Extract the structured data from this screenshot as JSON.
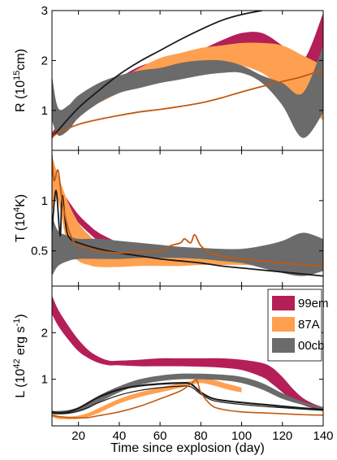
{
  "chart_data": [
    {
      "type": "area",
      "panel": "top",
      "ylabel": "R (10^15cm)",
      "ylabel_parts": {
        "prefix": "R (10",
        "exp": "15",
        "suffix": "cm)"
      },
      "xlim": [
        7,
        140
      ],
      "ylim": [
        0.2,
        3.0
      ],
      "yticks": [
        1,
        2,
        3
      ],
      "bands": [
        {
          "name": "99em",
          "color": "#b51f57",
          "x": [
            7,
            10,
            20,
            30,
            40,
            50,
            60,
            70,
            80,
            90,
            100,
            110,
            120,
            130,
            140
          ],
          "lower": [
            0.45,
            0.58,
            0.9,
            1.2,
            1.45,
            1.7,
            1.85,
            1.95,
            2.05,
            2.1,
            2.15,
            2.05,
            1.85,
            1.55,
            1.0
          ],
          "upper": [
            0.55,
            0.7,
            1.05,
            1.35,
            1.65,
            1.88,
            2.0,
            2.1,
            2.22,
            2.4,
            2.55,
            2.55,
            2.3,
            2.0,
            2.95
          ]
        },
        {
          "name": "87A",
          "color": "#ffa050",
          "x": [
            15,
            20,
            30,
            40,
            50,
            60,
            70,
            80,
            90,
            100,
            110,
            120,
            130,
            140
          ],
          "lower": [
            0.85,
            0.95,
            1.15,
            1.35,
            1.55,
            1.75,
            1.85,
            1.95,
            1.95,
            1.9,
            1.75,
            1.45,
            1.15,
            0.8
          ],
          "upper": [
            0.95,
            1.05,
            1.3,
            1.6,
            1.85,
            2.05,
            2.15,
            2.25,
            2.3,
            2.35,
            2.35,
            2.3,
            2.1,
            1.9
          ]
        },
        {
          "name": "00cb",
          "color": "#6b6b6b",
          "x": [
            7,
            10,
            15,
            20,
            30,
            40,
            50,
            60,
            70,
            80,
            90,
            100,
            110,
            120,
            130,
            140
          ],
          "lower": [
            0.8,
            0.5,
            0.6,
            0.85,
            1.15,
            1.35,
            1.45,
            1.55,
            1.62,
            1.7,
            1.75,
            1.75,
            1.55,
            1.1,
            0.45,
            0.95
          ],
          "upper": [
            1.7,
            1.05,
            1.1,
            1.3,
            1.55,
            1.7,
            1.8,
            1.85,
            1.95,
            2.0,
            2.0,
            1.9,
            1.7,
            1.55,
            1.35,
            2.3
          ]
        }
      ],
      "lines": [
        {
          "color": "#1a1a1a",
          "x": [
            7,
            10,
            20,
            30,
            40,
            50,
            60,
            70,
            80,
            90,
            100,
            110
          ],
          "y": [
            0.45,
            0.6,
            1.05,
            1.4,
            1.72,
            1.98,
            2.2,
            2.42,
            2.62,
            2.8,
            2.92,
            3.0
          ]
        },
        {
          "color": "#c05a10",
          "x": [
            7,
            10,
            20,
            30,
            40,
            50,
            60,
            70,
            80,
            90,
            100,
            110,
            120,
            130,
            140
          ],
          "y": [
            0.45,
            0.55,
            0.72,
            0.82,
            0.9,
            0.97,
            1.02,
            1.08,
            1.15,
            1.25,
            1.37,
            1.48,
            1.58,
            1.68,
            1.82
          ]
        }
      ]
    },
    {
      "type": "area",
      "panel": "middle",
      "ylabel": "T (10^4K)",
      "ylabel_parts": {
        "prefix": "T (10",
        "exp": "4",
        "suffix": "K)"
      },
      "xlim": [
        7,
        140
      ],
      "ylim": [
        0.15,
        1.5
      ],
      "yticks": [
        0.5,
        1
      ],
      "bands": [
        {
          "name": "99em",
          "color": "#b51f57",
          "x": [
            7,
            10,
            15,
            20,
            25,
            30,
            40,
            50,
            60,
            70
          ],
          "lower": [
            1.3,
            1.05,
            0.9,
            0.78,
            0.68,
            0.6,
            0.52,
            0.48,
            0.45,
            0.43
          ],
          "upper": [
            1.3,
            1.15,
            1.0,
            0.86,
            0.76,
            0.68,
            0.58,
            0.53,
            0.5,
            0.46
          ]
        },
        {
          "name": "87A",
          "color": "#ffa050",
          "x": [
            7,
            10,
            15,
            20,
            25,
            30,
            40,
            50,
            60,
            70,
            80,
            90,
            100,
            110,
            120,
            130,
            140
          ],
          "lower": [
            0.9,
            1.0,
            0.52,
            0.4,
            0.36,
            0.34,
            0.34,
            0.35,
            0.35,
            0.35,
            0.36,
            0.36,
            0.36,
            0.35,
            0.32,
            0.3,
            0.3
          ],
          "upper": [
            1.45,
            1.25,
            0.98,
            0.78,
            0.66,
            0.58,
            0.52,
            0.48,
            0.47,
            0.47,
            0.46,
            0.45,
            0.44,
            0.42,
            0.4,
            0.38,
            0.36
          ]
        },
        {
          "name": "00cb",
          "color": "#6b6b6b",
          "x": [
            7,
            10,
            15,
            20,
            30,
            40,
            50,
            60,
            70,
            80,
            90,
            100,
            110,
            120,
            130,
            140
          ],
          "lower": [
            0.25,
            0.35,
            0.4,
            0.42,
            0.42,
            0.42,
            0.43,
            0.43,
            0.43,
            0.42,
            0.4,
            0.38,
            0.33,
            0.28,
            0.25,
            0.3
          ],
          "upper": [
            0.85,
            0.7,
            0.65,
            0.62,
            0.62,
            0.6,
            0.58,
            0.56,
            0.54,
            0.53,
            0.52,
            0.52,
            0.55,
            0.6,
            0.68,
            0.62
          ]
        }
      ],
      "lines": [
        {
          "color": "#1a1a1a",
          "x": [
            7,
            9,
            11,
            12,
            14,
            16,
            20,
            30,
            40,
            50,
            60,
            70,
            80,
            90,
            100,
            110,
            120,
            130,
            140
          ],
          "y": [
            0.7,
            1.1,
            0.65,
            1.05,
            0.72,
            0.62,
            0.58,
            0.52,
            0.48,
            0.45,
            0.42,
            0.4,
            0.38,
            0.35,
            0.33,
            0.31,
            0.29,
            0.27,
            0.25
          ]
        },
        {
          "color": "#c05a10",
          "x": [
            7,
            8,
            10,
            12,
            15,
            18,
            20,
            25,
            30,
            40,
            50,
            60,
            65,
            70,
            72,
            75,
            77,
            80,
            85,
            90,
            100,
            110,
            120,
            130,
            140
          ],
          "y": [
            1.45,
            1.2,
            1.3,
            1.0,
            0.72,
            0.58,
            0.55,
            0.52,
            0.5,
            0.48,
            0.49,
            0.5,
            0.55,
            0.58,
            0.62,
            0.58,
            0.66,
            0.55,
            0.48,
            0.45,
            0.42,
            0.4,
            0.38,
            0.36,
            0.35
          ]
        }
      ]
    },
    {
      "type": "area",
      "panel": "bottom",
      "ylabel": "L (10^42 erg s^-1)",
      "ylabel_parts": {
        "prefix": "L (10",
        "exp": "42",
        "mid": " erg s",
        "exp2": "-1",
        "suffix": ")"
      },
      "xlabel": "Time since explosion (day)",
      "xlim": [
        7,
        140
      ],
      "ylim": [
        0.0,
        3.0
      ],
      "xticks": [
        20,
        40,
        60,
        80,
        100,
        120,
        140
      ],
      "yticks": [
        1,
        2
      ],
      "legend": {
        "placement": "top-right",
        "entries": [
          {
            "label": "99em",
            "color": "#b51f57"
          },
          {
            "label": "87A",
            "color": "#ffa050"
          },
          {
            "label": "00cb",
            "color": "#6b6b6b"
          }
        ]
      },
      "bands": [
        {
          "name": "99em",
          "color": "#b51f57",
          "x": [
            7,
            10,
            15,
            20,
            25,
            30,
            35,
            40,
            50,
            60,
            70,
            80,
            90,
            100,
            110,
            115,
            120,
            125,
            130,
            135,
            140
          ],
          "lower": [
            2.4,
            2.15,
            1.85,
            1.6,
            1.45,
            1.35,
            1.3,
            1.3,
            1.28,
            1.28,
            1.28,
            1.27,
            1.25,
            1.2,
            1.05,
            0.9,
            0.72,
            0.55,
            0.45,
            0.38,
            0.36
          ],
          "upper": [
            2.8,
            2.5,
            2.15,
            1.85,
            1.62,
            1.48,
            1.4,
            1.4,
            1.42,
            1.45,
            1.45,
            1.45,
            1.45,
            1.42,
            1.35,
            1.25,
            1.05,
            0.8,
            0.6,
            0.48,
            0.4
          ]
        },
        {
          "name": "87A",
          "color": "#ffa050",
          "x": [
            7,
            10,
            15,
            20,
            25,
            30,
            40,
            50,
            60,
            70,
            75,
            80,
            85,
            90,
            95,
            100
          ],
          "lower": [
            0.2,
            0.15,
            0.14,
            0.15,
            0.2,
            0.28,
            0.48,
            0.62,
            0.72,
            0.82,
            0.88,
            0.92,
            0.88,
            0.82,
            0.76,
            0.72
          ],
          "upper": [
            0.3,
            0.22,
            0.2,
            0.22,
            0.28,
            0.38,
            0.58,
            0.72,
            0.82,
            0.92,
            0.96,
            1.02,
            1.0,
            0.94,
            0.88,
            0.82
          ]
        },
        {
          "name": "00cb",
          "color": "#6b6b6b",
          "x": [
            7,
            10,
            15,
            20,
            25,
            30,
            40,
            50,
            60,
            70,
            80,
            90,
            100,
            110,
            120,
            130,
            140
          ],
          "lower": [
            0.25,
            0.25,
            0.26,
            0.3,
            0.38,
            0.5,
            0.72,
            0.88,
            0.96,
            1.0,
            1.0,
            0.98,
            0.92,
            0.78,
            0.58,
            0.45,
            0.35
          ],
          "upper": [
            0.32,
            0.32,
            0.34,
            0.4,
            0.5,
            0.65,
            0.85,
            1.0,
            1.08,
            1.12,
            1.12,
            1.1,
            1.05,
            0.92,
            0.7,
            0.52,
            0.4
          ]
        }
      ],
      "lines": [
        {
          "color": "#1a1a1a",
          "x": [
            7,
            10,
            15,
            20,
            25,
            30,
            40,
            50,
            60,
            70,
            75,
            80,
            85,
            90,
            100,
            110,
            120,
            130,
            140
          ],
          "y": [
            0.3,
            0.28,
            0.3,
            0.38,
            0.5,
            0.62,
            0.78,
            0.86,
            0.9,
            0.92,
            0.9,
            0.72,
            0.6,
            0.55,
            0.5,
            0.46,
            0.42,
            0.38,
            0.35
          ],
          "width": 2.2
        },
        {
          "color": "#1a1a1a",
          "x": [
            7,
            10,
            15,
            20,
            25,
            30,
            40,
            50,
            60,
            70,
            75,
            80,
            85,
            90,
            100,
            110,
            120,
            130,
            140
          ],
          "y": [
            0.28,
            0.26,
            0.27,
            0.32,
            0.4,
            0.5,
            0.66,
            0.76,
            0.82,
            0.85,
            0.84,
            0.68,
            0.56,
            0.51,
            0.46,
            0.42,
            0.39,
            0.36,
            0.33
          ],
          "width": 1.2
        },
        {
          "color": "#c05a10",
          "x": [
            7,
            10,
            15,
            20,
            25,
            30,
            40,
            50,
            60,
            70,
            75,
            78,
            80,
            85,
            90,
            100,
            110,
            120,
            130,
            140
          ],
          "y": [
            0.22,
            0.2,
            0.18,
            0.17,
            0.18,
            0.22,
            0.3,
            0.42,
            0.58,
            0.75,
            0.9,
            0.98,
            0.72,
            0.45,
            0.36,
            0.3,
            0.28,
            0.26,
            0.24,
            0.23
          ],
          "width": 1.6
        }
      ]
    }
  ]
}
